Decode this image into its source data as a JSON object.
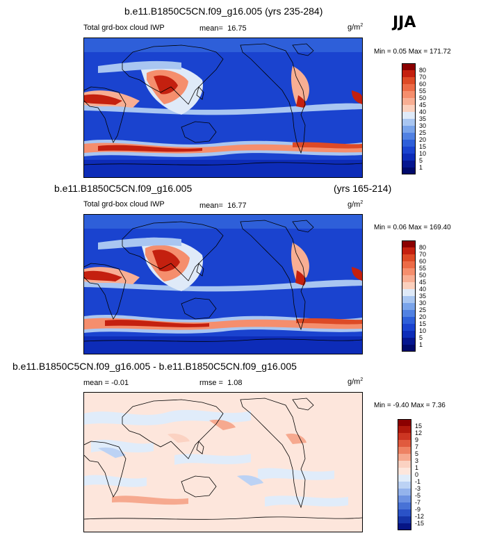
{
  "season": "JJA",
  "panels": [
    {
      "title": "b.e11.B1850C5CN.f09_g16.005 (yrs 235-284)",
      "subtitle": "",
      "variable": "Total grd-box cloud IWP",
      "stat_label": "mean=",
      "stat_value": "16.75",
      "stat2_label": "",
      "stat2_value": "",
      "unit": "g/m",
      "unit_sup": "2",
      "minmax": "Min =  0.05 Max = 171.72",
      "colorbar": {
        "levels": [
          "80",
          "70",
          "60",
          "55",
          "50",
          "45",
          "40",
          "35",
          "30",
          "25",
          "20",
          "15",
          "10",
          "5",
          "1"
        ],
        "colors": [
          "#8b0000",
          "#c4200f",
          "#dd4a26",
          "#ec6b47",
          "#f58e6d",
          "#f8ae93",
          "#fbd0bd",
          "#dfeaf8",
          "#a9c6f1",
          "#7aa4ea",
          "#5181e2",
          "#2e5fd9",
          "#1a43cf",
          "#0d2cb8",
          "#05168f",
          "#000a6b"
        ]
      }
    },
    {
      "title": "b.e11.B1850C5CN.f09_g16.005",
      "subtitle": "(yrs 165-214)",
      "variable": "Total grd-box cloud IWP",
      "stat_label": "mean=",
      "stat_value": "16.77",
      "stat2_label": "",
      "stat2_value": "",
      "unit": "g/m",
      "unit_sup": "2",
      "minmax": "Min =  0.06 Max = 169.40",
      "colorbar": {
        "levels": [
          "80",
          "70",
          "60",
          "55",
          "50",
          "45",
          "40",
          "35",
          "30",
          "25",
          "20",
          "15",
          "10",
          "5",
          "1"
        ],
        "colors": [
          "#8b0000",
          "#c4200f",
          "#dd4a26",
          "#ec6b47",
          "#f58e6d",
          "#f8ae93",
          "#fbd0bd",
          "#dfeaf8",
          "#a9c6f1",
          "#7aa4ea",
          "#5181e2",
          "#2e5fd9",
          "#1a43cf",
          "#0d2cb8",
          "#05168f",
          "#000a6b"
        ]
      }
    },
    {
      "title": "b.e11.B1850C5CN.f09_g16.005 - b.e11.B1850C5CN.f09_g16.005",
      "subtitle": "",
      "variable": "",
      "stat_label": "mean =",
      "stat_value": "-0.01",
      "stat2_label": "rmse =",
      "stat2_value": "1.08",
      "unit": "g/m",
      "unit_sup": "2",
      "minmax": "Min = -9.40 Max =  7.36",
      "colorbar": {
        "levels": [
          "15",
          "12",
          "9",
          "7",
          "5",
          "3",
          "1",
          "0",
          "-1",
          "-3",
          "-5",
          "-7",
          "-9",
          "-12",
          "-15"
        ],
        "colors": [
          "#8b0000",
          "#b0180c",
          "#cc3522",
          "#e05a3e",
          "#ee8263",
          "#f6a98f",
          "#fbd2c2",
          "#fde6dc",
          "#e0ecfa",
          "#bcd2f4",
          "#94b3ec",
          "#6d92e2",
          "#4872d6",
          "#2a52c7",
          "#1534a8",
          "#061585"
        ]
      }
    }
  ]
}
